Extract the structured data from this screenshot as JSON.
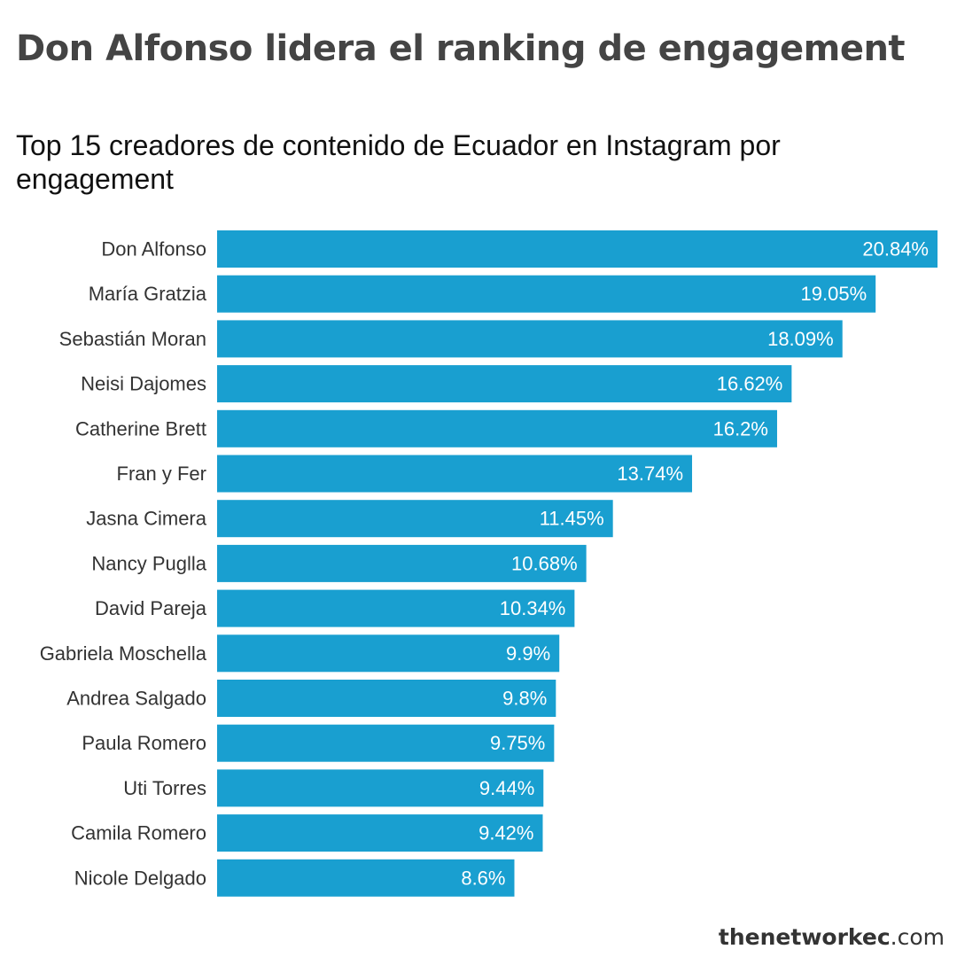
{
  "title": "Don Alfonso lidera el ranking de engagement",
  "subtitle": "Top 15 creadores de contenido de Ecuador en Instagram por engagement",
  "footer": {
    "brand_main": "thenetworkec",
    "brand_suffix": ".com"
  },
  "colors": {
    "bar": "#199fd0",
    "label_text": "#333333",
    "value_text": "#ffffff"
  },
  "chart_data": {
    "type": "bar",
    "orientation": "horizontal",
    "title": "Don Alfonso lidera el ranking de engagement",
    "subtitle": "Top 15 creadores de contenido de Ecuador en Instagram por engagement",
    "xlabel": "",
    "ylabel": "",
    "grid": false,
    "legend": "none",
    "xlim": [
      0,
      20.84
    ],
    "categories": [
      "Don Alfonso",
      "María Gratzia",
      "Sebastián Moran",
      "Neisi Dajomes",
      "Catherine Brett",
      "Fran y Fer",
      "Jasna Cimera",
      "Nancy Puglla",
      "David Pareja",
      "Gabriela Moschella",
      "Andrea Salgado",
      "Paula Romero",
      "Uti Torres",
      "Camila Romero",
      "Nicole Delgado"
    ],
    "values": [
      20.84,
      19.05,
      18.09,
      16.62,
      16.2,
      13.74,
      11.45,
      10.68,
      10.34,
      9.9,
      9.8,
      9.75,
      9.44,
      9.42,
      8.6
    ],
    "value_labels": [
      "20.84%",
      "19.05%",
      "18.09%",
      "16.62%",
      "16.2%",
      "13.74%",
      "11.45%",
      "10.68%",
      "10.34%",
      "9.9%",
      "9.8%",
      "9.75%",
      "9.44%",
      "9.42%",
      "8.6%"
    ]
  }
}
